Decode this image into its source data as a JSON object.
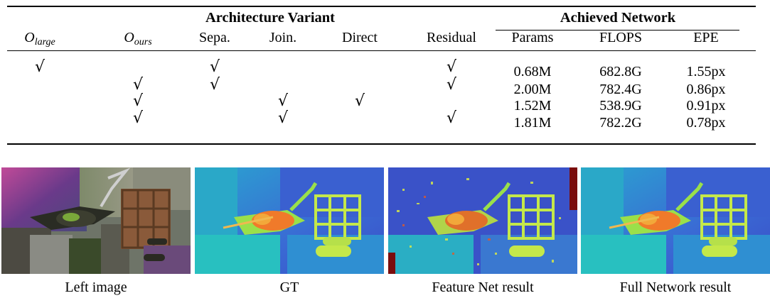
{
  "table": {
    "group_headers": {
      "architecture": "Architecture Variant",
      "achieved": "Achieved Network"
    },
    "columns": {
      "o_large": {
        "base": "O",
        "sub": "large"
      },
      "o_ours": {
        "base": "O",
        "sub": "ours"
      },
      "sepa": "Sepa.",
      "join": "Join.",
      "direct": "Direct",
      "residual": "Residual",
      "params": "Params",
      "flops": "FLOPS",
      "epe": "EPE"
    },
    "check_mark": "√",
    "rows": [
      {
        "o_large": true,
        "o_ours": false,
        "sepa": true,
        "join": false,
        "direct": false,
        "residual": true,
        "params": "0.68M",
        "flops": "682.8G",
        "epe": "1.55px"
      },
      {
        "o_large": false,
        "o_ours": true,
        "sepa": true,
        "join": false,
        "direct": false,
        "residual": true,
        "params": "2.00M",
        "flops": "782.4G",
        "epe": "0.86px"
      },
      {
        "o_large": false,
        "o_ours": true,
        "sepa": false,
        "join": true,
        "direct": true,
        "residual": false,
        "params": "1.52M",
        "flops": "538.9G",
        "epe": "0.91px"
      },
      {
        "o_large": false,
        "o_ours": true,
        "sepa": false,
        "join": true,
        "direct": false,
        "residual": true,
        "params": "1.81M",
        "flops": "782.2G",
        "epe": "0.78px"
      }
    ]
  },
  "figure": {
    "captions": [
      "Left image",
      "GT",
      "Feature Net result",
      "Full Network result"
    ],
    "colors": {
      "disparity_far": "#3a4fc8",
      "disparity_mid": "#21b5c9",
      "disparity_near": "#c4e84a",
      "disparity_closest": "#f07a2a",
      "noise_dark_red": "#7a0d0d"
    }
  }
}
